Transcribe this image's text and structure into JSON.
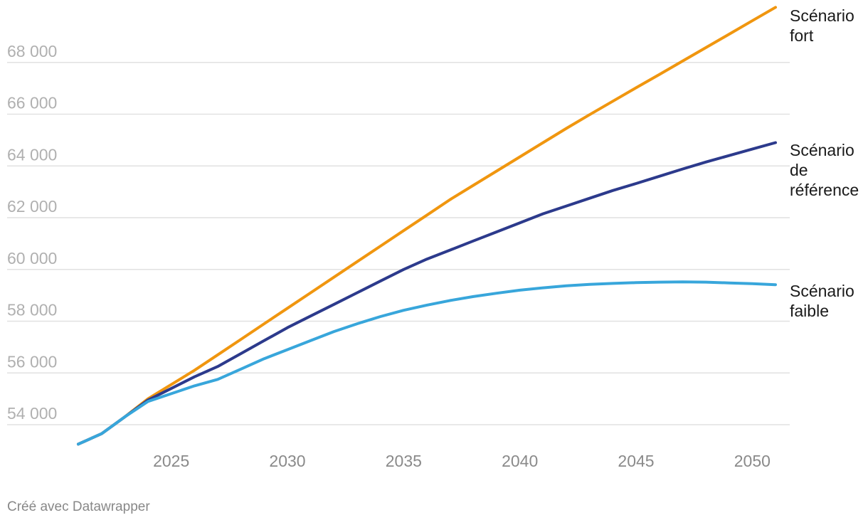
{
  "credit": "Créé avec Datawrapper",
  "chart_data": {
    "type": "line",
    "title": "",
    "xlabel": "",
    "ylabel": "",
    "xlim": [
      2021,
      2051
    ],
    "ylim": [
      53000,
      70000
    ],
    "grid": true,
    "legend": "direct-labels-right",
    "x_ticks": [
      2025,
      2030,
      2035,
      2040,
      2045,
      2050
    ],
    "y_ticks": [
      54000,
      56000,
      58000,
      60000,
      62000,
      64000,
      66000,
      68000
    ],
    "y_tick_labels": [
      "54 000",
      "56 000",
      "58 000",
      "60 000",
      "62 000",
      "64 000",
      "66 000",
      "68 000"
    ],
    "x": [
      2021,
      2022,
      2023,
      2024,
      2025,
      2026,
      2027,
      2028,
      2029,
      2030,
      2031,
      2032,
      2033,
      2034,
      2035,
      2036,
      2037,
      2038,
      2039,
      2040,
      2041,
      2042,
      2043,
      2044,
      2045,
      2046,
      2047,
      2048,
      2049,
      2050,
      2051
    ],
    "series": [
      {
        "name": "Scénario fort",
        "label_lines": [
          "Scénario",
          "fort"
        ],
        "color": "#f0960f",
        "values": [
          53250,
          53650,
          54300,
          55000,
          55550,
          56100,
          56700,
          57300,
          57900,
          58500,
          59100,
          59700,
          60300,
          60900,
          61500,
          62100,
          62700,
          63250,
          63800,
          64350,
          64900,
          65450,
          65980,
          66500,
          67020,
          67530,
          68050,
          68570,
          69090,
          69610,
          70130
        ]
      },
      {
        "name": "Scénario de référence",
        "label_lines": [
          "Scénario",
          "de",
          "référence"
        ],
        "color": "#2c3a8c",
        "values": [
          53250,
          53650,
          54300,
          54950,
          55400,
          55850,
          56250,
          56750,
          57250,
          57750,
          58200,
          58650,
          59100,
          59550,
          60000,
          60400,
          60750,
          61100,
          61450,
          61800,
          62150,
          62450,
          62750,
          63050,
          63320,
          63600,
          63880,
          64150,
          64400,
          64650,
          64900
        ]
      },
      {
        "name": "Scénario faible",
        "label_lines": [
          "Scénario",
          "faible"
        ],
        "color": "#38a6db",
        "values": [
          53250,
          53650,
          54300,
          54900,
          55200,
          55500,
          55750,
          56150,
          56550,
          56900,
          57250,
          57600,
          57900,
          58180,
          58420,
          58620,
          58800,
          58950,
          59080,
          59200,
          59290,
          59370,
          59420,
          59460,
          59490,
          59510,
          59520,
          59510,
          59480,
          59450,
          59410
        ]
      }
    ]
  }
}
